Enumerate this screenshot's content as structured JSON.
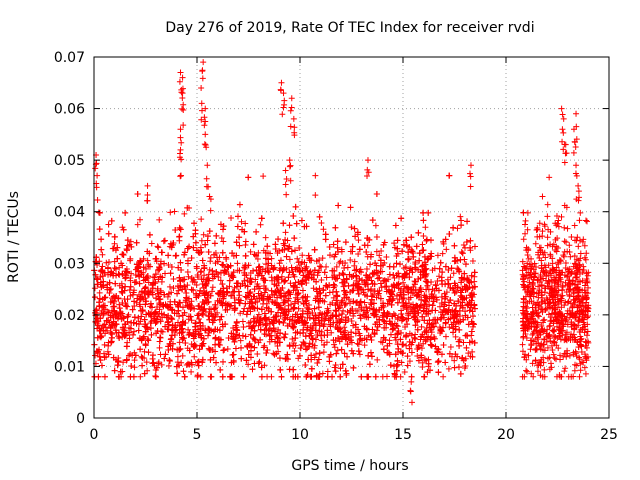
{
  "chart_data": {
    "type": "scatter",
    "title": "Day 276 of 2019, Rate Of TEC Index for receiver rvdi",
    "xlabel": "GPS time / hours",
    "ylabel": "ROTI / TECUs",
    "xlim": [
      0,
      25
    ],
    "ylim": [
      0,
      0.07
    ],
    "xticks": [
      0,
      5,
      10,
      15,
      20,
      25
    ],
    "xtick_labels": [
      "0",
      "5",
      "10",
      "15",
      "20",
      "25"
    ],
    "yticks": [
      0,
      0.01,
      0.02,
      0.03,
      0.04,
      0.05,
      0.06,
      0.07
    ],
    "ytick_labels": [
      "0",
      "0.01",
      "0.02",
      "0.03",
      "0.04",
      "0.05",
      "0.06",
      "0.07"
    ],
    "grid": true,
    "marker": "+",
    "color": "#ff0000",
    "series": [
      {
        "name": "ROTI",
        "segments": [
          [
            0.0,
            18.5
          ],
          [
            20.8,
            24.0
          ]
        ],
        "approx_mean": 0.022,
        "approx_spread": 0.007,
        "peaks": [
          {
            "x": 0.1,
            "y": 0.051
          },
          {
            "x": 0.15,
            "y": 0.047
          },
          {
            "x": 2.6,
            "y": 0.045
          },
          {
            "x": 4.2,
            "y": 0.067
          },
          {
            "x": 4.3,
            "y": 0.066
          },
          {
            "x": 4.3,
            "y": 0.063
          },
          {
            "x": 4.2,
            "y": 0.056
          },
          {
            "x": 4.2,
            "y": 0.052
          },
          {
            "x": 5.3,
            "y": 0.069
          },
          {
            "x": 5.2,
            "y": 0.064
          },
          {
            "x": 5.4,
            "y": 0.06
          },
          {
            "x": 5.4,
            "y": 0.055
          },
          {
            "x": 5.5,
            "y": 0.049
          },
          {
            "x": 9.1,
            "y": 0.065
          },
          {
            "x": 9.2,
            "y": 0.063
          },
          {
            "x": 9.6,
            "y": 0.062
          },
          {
            "x": 9.7,
            "y": 0.058
          },
          {
            "x": 9.5,
            "y": 0.05
          },
          {
            "x": 9.3,
            "y": 0.048
          },
          {
            "x": 13.3,
            "y": 0.05
          },
          {
            "x": 15.4,
            "y": 0.007
          },
          {
            "x": 18.3,
            "y": 0.049
          },
          {
            "x": 22.7,
            "y": 0.06
          },
          {
            "x": 22.8,
            "y": 0.058
          },
          {
            "x": 23.4,
            "y": 0.059
          },
          {
            "x": 23.3,
            "y": 0.056
          },
          {
            "x": 22.9,
            "y": 0.053
          },
          {
            "x": 23.4,
            "y": 0.049
          },
          {
            "x": 23.5,
            "y": 0.045
          }
        ]
      }
    ]
  }
}
